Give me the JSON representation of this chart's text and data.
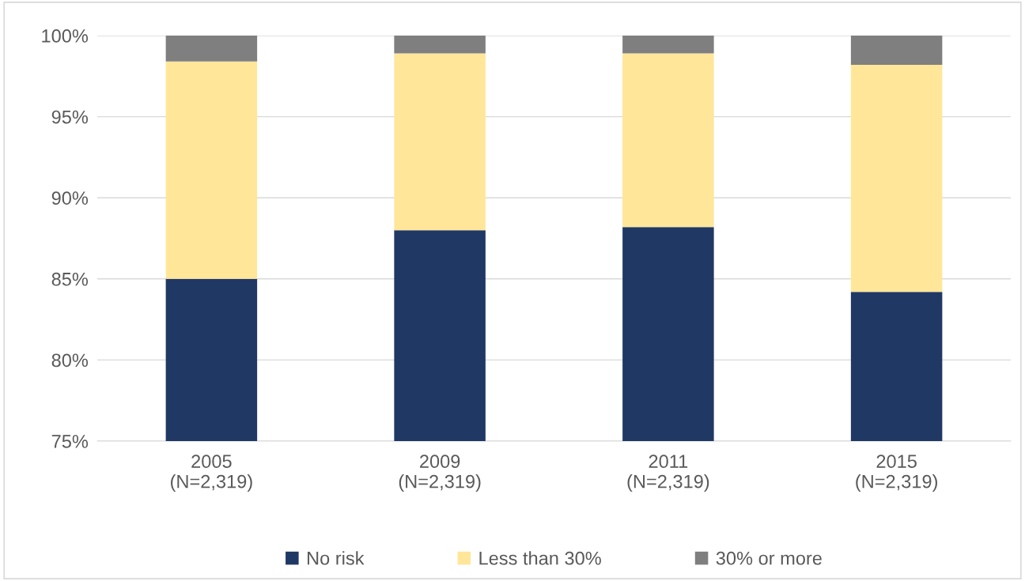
{
  "chart_data": {
    "type": "bar",
    "stacked": true,
    "categories": [
      "2005\n(N=2,319)",
      "2009\n(N=2,319)",
      "2011\n(N=2,319)",
      "2015\n(N=2,319)"
    ],
    "series": [
      {
        "name": "No risk",
        "color": "#203864",
        "values": [
          85.0,
          88.0,
          88.2,
          84.2
        ]
      },
      {
        "name": "Less than 30%",
        "color": "#ffe699",
        "base": [
          85.0,
          88.0,
          88.2,
          84.2
        ],
        "values": [
          13.4,
          10.9,
          10.7,
          14.0
        ]
      },
      {
        "name": "30% or more",
        "color": "#7f7f7f",
        "base": [
          98.4,
          98.9,
          98.9,
          98.2
        ],
        "values": [
          1.6,
          1.1,
          1.1,
          1.8
        ]
      }
    ],
    "ylim": [
      75,
      100
    ],
    "yticks": [
      {
        "value": 75,
        "label": "75%"
      },
      {
        "value": 80,
        "label": "80%"
      },
      {
        "value": 85,
        "label": "85%"
      },
      {
        "value": 90,
        "label": "90%"
      },
      {
        "value": 95,
        "label": "95%"
      },
      {
        "value": 100,
        "label": "100%"
      }
    ],
    "grid": "y",
    "legend": "bottom"
  }
}
